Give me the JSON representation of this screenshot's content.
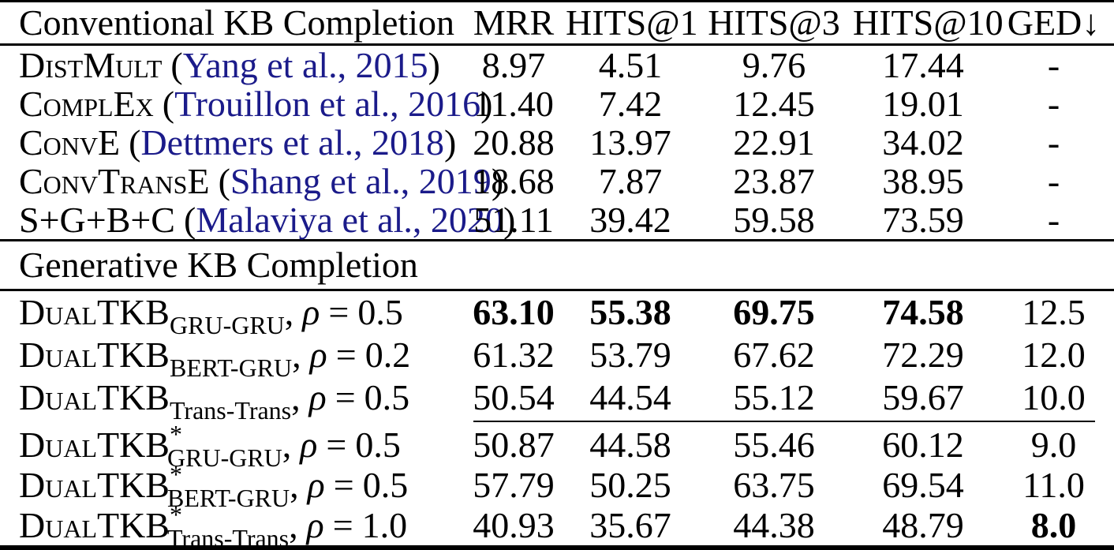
{
  "colors": {
    "citation": "#1b1b8a",
    "text": "#000000",
    "background": "#ffffff"
  },
  "punct": {
    "open_paren": "(",
    "close_paren": ")",
    "comma": ",",
    "rho": "ρ",
    "equals": "="
  },
  "header": {
    "col0": "Conventional KB Completion",
    "col1": "MRR",
    "col2": "HITS@1",
    "col3": "HITS@3",
    "col4": "HITS@10",
    "col5": "GED↓"
  },
  "sections": {
    "generative": "Generative KB Completion"
  },
  "conventional_rows": [
    {
      "name": "DistMult",
      "citation": "Yang et al., 2015",
      "mrr": "8.97",
      "hits1": "4.51",
      "hits3": "9.76",
      "hits10": "17.44",
      "ged": "-"
    },
    {
      "name": "ComplEx",
      "citation": "Trouillon et al., 2016",
      "mrr": "11.40",
      "hits1": "7.42",
      "hits3": "12.45",
      "hits10": "19.01",
      "ged": "-"
    },
    {
      "name": "ConvE",
      "citation": "Dettmers et al., 2018",
      "mrr": "20.88",
      "hits1": "13.97",
      "hits3": "22.91",
      "hits10": "34.02",
      "ged": "-"
    },
    {
      "name": "ConvTransE",
      "citation": "Shang et al., 2019",
      "mrr": "18.68",
      "hits1": "7.87",
      "hits3": "23.87",
      "hits10": "38.95",
      "ged": "-"
    },
    {
      "name": "S+G+B+C",
      "citation": "Malaviya et al., 2020",
      "mrr": "51.11",
      "hits1": "39.42",
      "hits3": "59.58",
      "hits10": "73.59",
      "ged": "-"
    }
  ],
  "generative_rows": [
    {
      "name": "DualTKB",
      "star": "",
      "variant": "GRU-GRU",
      "rho": "0.5",
      "mrr": "63.10",
      "hits1": "55.38",
      "hits3": "69.75",
      "hits10": "74.58",
      "ged": "12.5"
    },
    {
      "name": "DualTKB",
      "star": "",
      "variant": "BERT-GRU",
      "rho": "0.2",
      "mrr": "61.32",
      "hits1": "53.79",
      "hits3": "67.62",
      "hits10": "72.29",
      "ged": "12.0"
    },
    {
      "name": "DualTKB",
      "star": "",
      "variant": "Trans-Trans",
      "rho": "0.5",
      "mrr": "50.54",
      "hits1": "44.54",
      "hits3": "55.12",
      "hits10": "59.67",
      "ged": "10.0"
    },
    {
      "name": "DualTKB",
      "star": "*",
      "variant": "GRU-GRU",
      "rho": "0.5",
      "mrr": "50.87",
      "hits1": "44.58",
      "hits3": "55.46",
      "hits10": "60.12",
      "ged": "9.0"
    },
    {
      "name": "DualTKB",
      "star": "*",
      "variant": "BERT-GRU",
      "rho": "0.5",
      "mrr": "57.79",
      "hits1": "50.25",
      "hits3": "63.75",
      "hits10": "69.54",
      "ged": "11.0"
    },
    {
      "name": "DualTKB",
      "star": "*",
      "variant": "Trans-Trans",
      "rho": "1.0",
      "mrr": "40.93",
      "hits1": "35.67",
      "hits3": "44.38",
      "hits10": "48.79",
      "ged": "8.0"
    }
  ]
}
